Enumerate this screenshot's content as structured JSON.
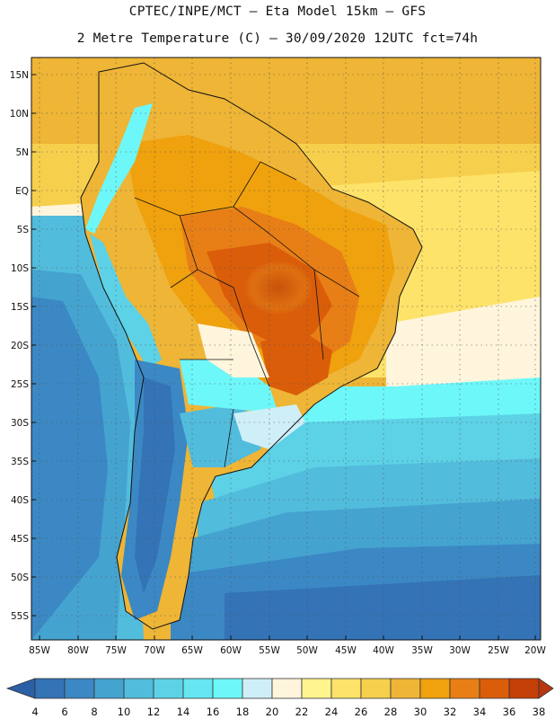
{
  "header": {
    "line1": "CPTEC/INPE/MCT –  Eta Model 15km – GFS",
    "line2": "2 Metre Temperature (C) – 30/09/2020 12UTC fct=74h"
  },
  "map": {
    "region": "South America",
    "lat_labels": [
      "15N",
      "10N",
      "5N",
      "EQ",
      "5S",
      "10S",
      "15S",
      "20S",
      "25S",
      "30S",
      "35S",
      "40S",
      "45S",
      "50S",
      "55S"
    ],
    "lon_labels": [
      "85W",
      "80W",
      "75W",
      "70W",
      "65W",
      "60W",
      "55W",
      "50W",
      "45W",
      "40W",
      "35W",
      "30W",
      "25W",
      "20W"
    ]
  },
  "colorbar": {
    "labels": [
      "4",
      "6",
      "8",
      "10",
      "12",
      "14",
      "16",
      "18",
      "20",
      "22",
      "24",
      "26",
      "28",
      "30",
      "32",
      "34",
      "36",
      "38"
    ],
    "colors": [
      "#2b5fa6",
      "#3373b6",
      "#3b88c4",
      "#45a3d0",
      "#52bcdc",
      "#5dd2e6",
      "#66e6f0",
      "#6ef7f9",
      "#cfeff8",
      "#fff5dc",
      "#fff48e",
      "#fde36a",
      "#f6cf4d",
      "#eeb536",
      "#efa10e",
      "#e87f16",
      "#da5d0a",
      "#c43f07",
      "#b8360f"
    ]
  }
}
